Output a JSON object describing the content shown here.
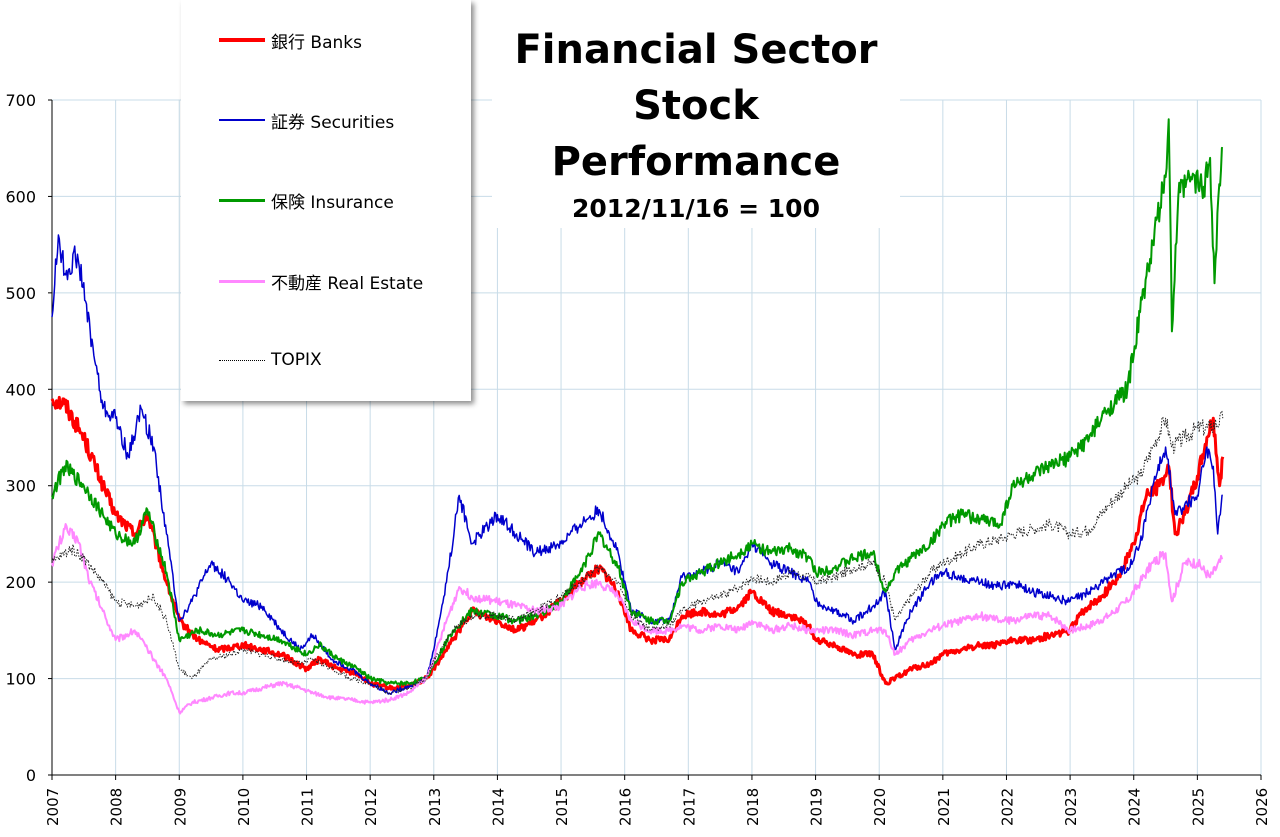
{
  "chart_data": {
    "type": "line",
    "title": "Financial Sector Stock Performance",
    "title_lines": [
      "Financial Sector",
      "Stock Performance"
    ],
    "subtitle": "2012/11/16 = 100",
    "xlabel": "",
    "ylabel": "",
    "xlim": [
      2007,
      2026
    ],
    "ylim": [
      0,
      700
    ],
    "x_ticks": [
      "2007",
      "2008",
      "2009",
      "2010",
      "2011",
      "2012",
      "2013",
      "2014",
      "2015",
      "2016",
      "2017",
      "2018",
      "2019",
      "2020",
      "2021",
      "2022",
      "2023",
      "2024",
      "2025",
      "2026"
    ],
    "y_ticks": [
      "0",
      "100",
      "200",
      "300",
      "400",
      "500",
      "600",
      "700"
    ],
    "grid": true,
    "legend_position": "top-left",
    "series": [
      {
        "name": "銀行 Banks",
        "color": "#ff0000",
        "style": "solid",
        "width": 3,
        "x": [
          2007.0,
          2007.2,
          2007.5,
          2007.8,
          2008.0,
          2008.3,
          2008.5,
          2008.8,
          2009.0,
          2009.3,
          2009.6,
          2010.0,
          2010.3,
          2010.6,
          2011.0,
          2011.2,
          2011.5,
          2011.8,
          2012.0,
          2012.3,
          2012.6,
          2012.88,
          2013.0,
          2013.3,
          2013.6,
          2014.0,
          2014.3,
          2014.6,
          2015.0,
          2015.3,
          2015.6,
          2015.9,
          2016.1,
          2016.4,
          2016.7,
          2016.9,
          2017.2,
          2017.5,
          2017.8,
          2018.0,
          2018.3,
          2018.6,
          2018.9,
          2019.0,
          2019.3,
          2019.6,
          2019.9,
          2020.1,
          2020.25,
          2020.5,
          2020.8,
          2021.0,
          2021.3,
          2021.6,
          2021.9,
          2022.1,
          2022.4,
          2022.7,
          2023.0,
          2023.2,
          2023.5,
          2023.8,
          2024.0,
          2024.2,
          2024.4,
          2024.55,
          2024.65,
          2024.8,
          2025.0,
          2025.15,
          2025.25,
          2025.35,
          2025.4
        ],
        "values": [
          390,
          385,
          350,
          300,
          270,
          250,
          270,
          200,
          160,
          140,
          130,
          135,
          130,
          125,
          110,
          120,
          110,
          105,
          95,
          90,
          92,
          100,
          110,
          140,
          170,
          160,
          150,
          160,
          180,
          200,
          215,
          190,
          150,
          140,
          140,
          165,
          170,
          165,
          175,
          190,
          170,
          165,
          155,
          140,
          135,
          125,
          125,
          95,
          100,
          110,
          115,
          125,
          130,
          135,
          135,
          140,
          140,
          145,
          150,
          170,
          185,
          210,
          240,
          290,
          300,
          320,
          250,
          270,
          310,
          350,
          370,
          300,
          330
        ]
      },
      {
        "name": "証券 Securities",
        "color": "#0000cc",
        "style": "solid",
        "width": 1.5,
        "x": [
          2007.0,
          2007.1,
          2007.2,
          2007.4,
          2007.6,
          2007.8,
          2008.0,
          2008.2,
          2008.4,
          2008.6,
          2008.8,
          2009.0,
          2009.2,
          2009.5,
          2009.8,
          2010.0,
          2010.3,
          2010.6,
          2010.9,
          2011.1,
          2011.4,
          2011.7,
          2012.0,
          2012.3,
          2012.6,
          2012.88,
          2013.0,
          2013.2,
          2013.4,
          2013.6,
          2014.0,
          2014.3,
          2014.6,
          2015.0,
          2015.3,
          2015.6,
          2015.9,
          2016.1,
          2016.4,
          2016.7,
          2016.9,
          2017.2,
          2017.5,
          2017.8,
          2018.0,
          2018.3,
          2018.6,
          2018.9,
          2019.0,
          2019.3,
          2019.6,
          2019.9,
          2020.1,
          2020.25,
          2020.5,
          2020.8,
          2021.0,
          2021.3,
          2021.6,
          2021.9,
          2022.1,
          2022.4,
          2022.7,
          2023.0,
          2023.3,
          2023.6,
          2023.9,
          2024.1,
          2024.3,
          2024.5,
          2024.65,
          2024.8,
          2025.0,
          2025.15,
          2025.25,
          2025.32,
          2025.4
        ],
        "values": [
          475,
          560,
          520,
          540,
          460,
          380,
          370,
          330,
          380,
          340,
          250,
          160,
          180,
          220,
          200,
          180,
          175,
          150,
          130,
          145,
          120,
          110,
          95,
          85,
          92,
          100,
          130,
          200,
          290,
          240,
          270,
          250,
          230,
          240,
          260,
          275,
          230,
          170,
          160,
          160,
          205,
          210,
          220,
          210,
          240,
          220,
          210,
          200,
          180,
          170,
          160,
          175,
          190,
          130,
          170,
          200,
          210,
          205,
          200,
          195,
          200,
          190,
          185,
          180,
          190,
          205,
          215,
          240,
          300,
          340,
          270,
          280,
          290,
          340,
          320,
          250,
          290
        ]
      },
      {
        "name": "保険 Insurance",
        "color": "#009900",
        "style": "solid",
        "width": 2,
        "x": [
          2007.0,
          2007.2,
          2007.5,
          2007.8,
          2008.0,
          2008.3,
          2008.5,
          2008.8,
          2009.0,
          2009.3,
          2009.6,
          2010.0,
          2010.3,
          2010.6,
          2011.0,
          2011.2,
          2011.5,
          2011.8,
          2012.0,
          2012.3,
          2012.6,
          2012.88,
          2013.0,
          2013.3,
          2013.6,
          2014.0,
          2014.3,
          2014.6,
          2015.0,
          2015.3,
          2015.6,
          2015.9,
          2016.1,
          2016.4,
          2016.7,
          2016.9,
          2017.2,
          2017.5,
          2017.8,
          2018.0,
          2018.3,
          2018.6,
          2018.9,
          2019.0,
          2019.3,
          2019.6,
          2019.9,
          2020.1,
          2020.25,
          2020.5,
          2020.8,
          2021.0,
          2021.3,
          2021.6,
          2021.9,
          2022.1,
          2022.4,
          2022.7,
          2023.0,
          2023.3,
          2023.6,
          2023.9,
          2024.1,
          2024.3,
          2024.5,
          2024.55,
          2024.6,
          2024.7,
          2024.9,
          2025.1,
          2025.2,
          2025.27,
          2025.33,
          2025.4
        ],
        "values": [
          290,
          320,
          300,
          270,
          250,
          240,
          275,
          210,
          140,
          150,
          145,
          150,
          145,
          140,
          125,
          135,
          120,
          110,
          100,
          95,
          95,
          100,
          115,
          150,
          170,
          165,
          160,
          165,
          180,
          210,
          250,
          215,
          170,
          160,
          160,
          200,
          210,
          220,
          230,
          240,
          230,
          235,
          225,
          210,
          215,
          225,
          230,
          190,
          210,
          225,
          240,
          260,
          270,
          265,
          260,
          300,
          310,
          320,
          330,
          350,
          380,
          400,
          480,
          550,
          620,
          680,
          460,
          600,
          620,
          610,
          640,
          510,
          600,
          650
        ]
      },
      {
        "name": "不動産 Real Estate",
        "color": "#ff88ff",
        "style": "solid",
        "width": 2,
        "x": [
          2007.0,
          2007.2,
          2007.4,
          2007.6,
          2007.8,
          2008.0,
          2008.3,
          2008.6,
          2008.8,
          2009.0,
          2009.2,
          2009.5,
          2009.8,
          2010.0,
          2010.3,
          2010.6,
          2010.9,
          2011.1,
          2011.4,
          2011.7,
          2012.0,
          2012.3,
          2012.6,
          2012.88,
          2013.0,
          2013.2,
          2013.4,
          2013.6,
          2014.0,
          2014.3,
          2014.6,
          2015.0,
          2015.3,
          2015.6,
          2015.9,
          2016.1,
          2016.4,
          2016.7,
          2016.9,
          2017.2,
          2017.5,
          2017.8,
          2018.0,
          2018.3,
          2018.6,
          2018.9,
          2019.0,
          2019.3,
          2019.6,
          2019.9,
          2020.1,
          2020.25,
          2020.5,
          2020.8,
          2021.0,
          2021.3,
          2021.6,
          2021.9,
          2022.1,
          2022.4,
          2022.7,
          2023.0,
          2023.3,
          2023.6,
          2023.9,
          2024.1,
          2024.3,
          2024.5,
          2024.6,
          2024.8,
          2025.0,
          2025.2,
          2025.4
        ],
        "values": [
          220,
          255,
          245,
          200,
          170,
          140,
          150,
          120,
          100,
          65,
          75,
          80,
          85,
          85,
          90,
          95,
          90,
          85,
          80,
          78,
          75,
          78,
          85,
          100,
          120,
          160,
          195,
          185,
          180,
          175,
          170,
          175,
          195,
          200,
          185,
          160,
          150,
          150,
          155,
          150,
          155,
          150,
          160,
          150,
          155,
          150,
          150,
          150,
          145,
          150,
          150,
          125,
          140,
          150,
          155,
          160,
          165,
          160,
          160,
          165,
          165,
          150,
          155,
          165,
          180,
          200,
          220,
          230,
          180,
          220,
          220,
          205,
          225
        ]
      },
      {
        "name": "TOPIX",
        "color": "#222222",
        "style": "dotted",
        "width": 1,
        "x": [
          2007.0,
          2007.3,
          2007.5,
          2007.8,
          2008.0,
          2008.3,
          2008.6,
          2008.8,
          2009.0,
          2009.2,
          2009.5,
          2009.8,
          2010.0,
          2010.3,
          2010.6,
          2010.9,
          2011.1,
          2011.4,
          2011.7,
          2012.0,
          2012.3,
          2012.6,
          2012.88,
          2013.0,
          2013.3,
          2013.6,
          2014.0,
          2014.3,
          2014.6,
          2015.0,
          2015.3,
          2015.6,
          2015.9,
          2016.1,
          2016.4,
          2016.7,
          2016.9,
          2017.2,
          2017.5,
          2017.8,
          2018.0,
          2018.3,
          2018.6,
          2018.9,
          2019.0,
          2019.3,
          2019.6,
          2019.9,
          2020.1,
          2020.25,
          2020.5,
          2020.8,
          2021.0,
          2021.3,
          2021.6,
          2021.9,
          2022.1,
          2022.4,
          2022.7,
          2023.0,
          2023.3,
          2023.6,
          2023.9,
          2024.1,
          2024.3,
          2024.5,
          2024.6,
          2024.8,
          2025.0,
          2025.2,
          2025.4
        ],
        "values": [
          220,
          235,
          225,
          200,
          180,
          175,
          185,
          160,
          110,
          100,
          120,
          125,
          130,
          125,
          120,
          115,
          120,
          110,
          100,
          95,
          85,
          90,
          100,
          120,
          150,
          165,
          165,
          160,
          170,
          185,
          200,
          215,
          200,
          165,
          150,
          155,
          170,
          180,
          185,
          195,
          205,
          200,
          210,
          205,
          200,
          205,
          215,
          220,
          200,
          160,
          185,
          210,
          220,
          230,
          240,
          245,
          250,
          255,
          260,
          250,
          255,
          280,
          300,
          310,
          340,
          370,
          340,
          350,
          360,
          360,
          370
        ]
      }
    ]
  }
}
